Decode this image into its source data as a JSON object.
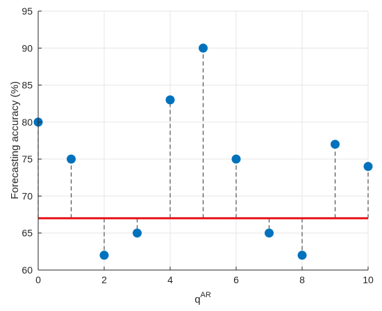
{
  "chart_data": {
    "type": "stem",
    "xlabel_base": "q",
    "xlabel_superscript": "AR",
    "ylabel": "Forecasting accuracy (%)",
    "xlim": [
      0,
      10
    ],
    "ylim": [
      60,
      95
    ],
    "x_ticks": [
      0,
      2,
      4,
      6,
      8,
      10
    ],
    "y_ticks": [
      60,
      65,
      70,
      75,
      80,
      85,
      90,
      95
    ],
    "grid": true,
    "baseline": 67,
    "x": [
      0,
      1,
      2,
      3,
      4,
      5,
      6,
      7,
      8,
      9,
      10
    ],
    "y": [
      80,
      75,
      62,
      65,
      83,
      90,
      75,
      65,
      62,
      77,
      74
    ],
    "colors": {
      "marker": "#0072BD",
      "baseline": "#E8141B",
      "stem": "#4d4d4d",
      "grid": "#e6e6e6",
      "axis": "#262626"
    }
  }
}
